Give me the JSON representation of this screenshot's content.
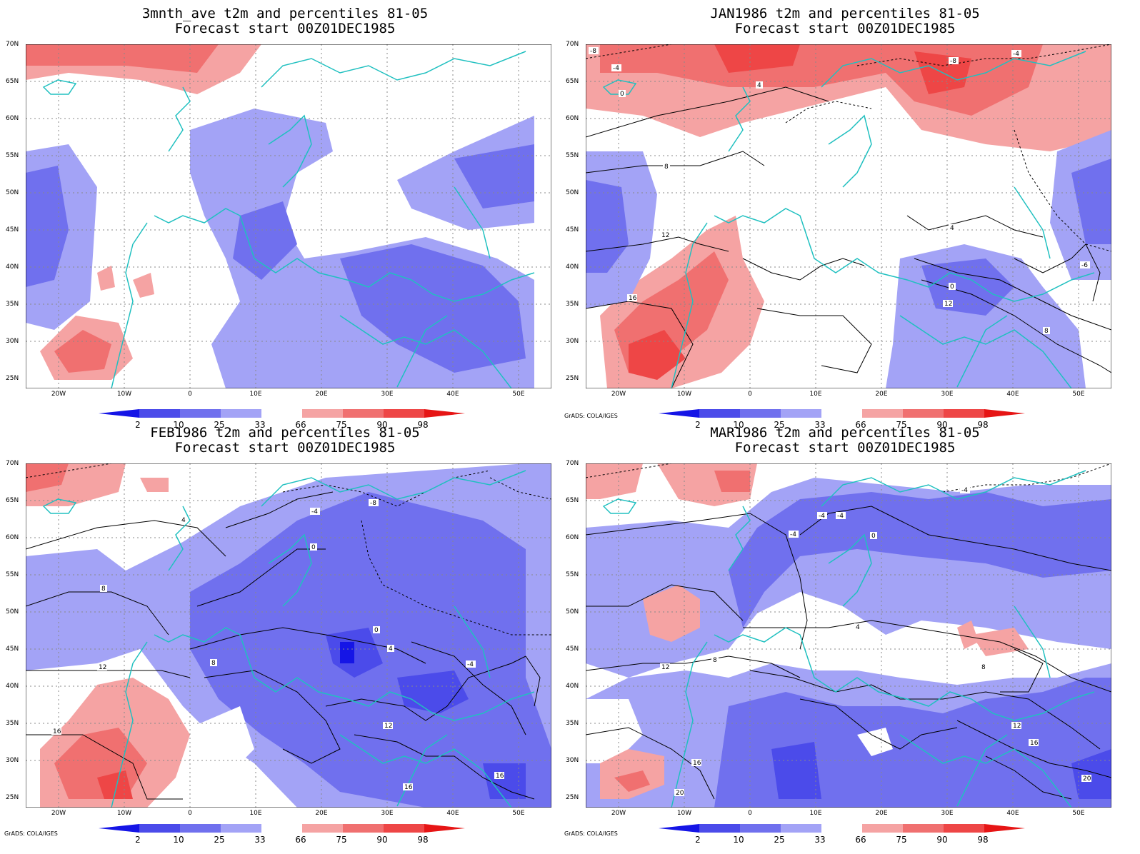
{
  "panels": [
    {
      "title1": "3mnth_ave t2m and percentiles 81-05",
      "title2": "Forecast start 00Z01DEC1985",
      "credit": ""
    },
    {
      "title1": "JAN1986 t2m and percentiles 81-05",
      "title2": "Forecast start 00Z01DEC1985",
      "credit": "GrADS: COLA/IGES"
    },
    {
      "title1": "FEB1986 t2m and percentiles 81-05",
      "title2": "Forecast start 00Z01DEC1985",
      "credit": "GrADS: COLA/IGES"
    },
    {
      "title1": "MAR1986 t2m and percentiles 81-05",
      "title2": "Forecast start 00Z01DEC1985",
      "credit": "GrADS: COLA/IGES"
    }
  ],
  "lat_labels": [
    "70N",
    "65N",
    "60N",
    "55N",
    "50N",
    "45N",
    "40N",
    "35N",
    "30N",
    "25N"
  ],
  "lon_labels": [
    "20W",
    "10W",
    "0",
    "10E",
    "20E",
    "30E",
    "40E",
    "50E"
  ],
  "colorbar": {
    "labels": [
      "2",
      "10",
      "25",
      "33",
      "66",
      "75",
      "90",
      "98"
    ],
    "colors": [
      "#1515e6",
      "#4b4bea",
      "#7070ee",
      "#a3a3f6",
      "#ffffff",
      "#f5a3a3",
      "#f07070",
      "#ee4646",
      "#e61515"
    ]
  },
  "colors": {
    "coast": "#20c0c0",
    "contour": "#000000",
    "grid": "#888888"
  },
  "contour_labels": {
    "jan": [
      "-8",
      "-4",
      "0",
      "4",
      "8",
      "12",
      "16",
      "-6",
      "-8",
      "-4",
      "0",
      "4",
      "8",
      "12"
    ],
    "feb": [
      "-8",
      "-4",
      "0",
      "4",
      "8",
      "12",
      "16",
      "-4",
      "0",
      "4",
      "8",
      "12",
      "16",
      "16"
    ],
    "mar": [
      "-4",
      "-4",
      "-4",
      "0",
      "4",
      "8",
      "12",
      "16",
      "20",
      "12",
      "16",
      "20",
      "-4",
      "8"
    ]
  }
}
